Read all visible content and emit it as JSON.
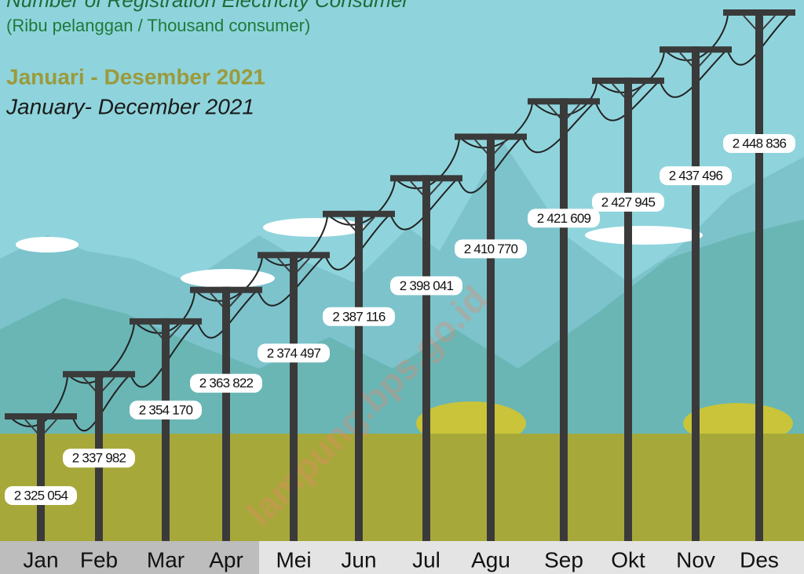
{
  "chart_data": {
    "type": "bar",
    "title": "Number of Registration Electricity Consumer",
    "subtitle": "(Ribu pelanggan / Thousand consumer)",
    "period_id": "Januari - Desember 2021",
    "period_en": "January- December 2021",
    "watermark": "lampung.bps.go.id",
    "categories": [
      "Jan",
      "Feb",
      "Mar",
      "Apr",
      "Mei",
      "Jun",
      "Jul",
      "Agu",
      "Sep",
      "Okt",
      "Nov",
      "Des"
    ],
    "values": [
      2325054,
      2337982,
      2354170,
      2363822,
      2374497,
      2387116,
      2398041,
      2410770,
      2421609,
      2427945,
      2437496,
      2448836
    ],
    "value_labels": [
      "2 325 054",
      "2 337 982",
      "2 354 170",
      "2 363 822",
      "2 374 497",
      "2 387 116",
      "2 398 041",
      "2 410 770",
      "2 421 609",
      "2 427 945",
      "2 437 496",
      "2 448 836"
    ],
    "color": "#3a3a3a"
  }
}
